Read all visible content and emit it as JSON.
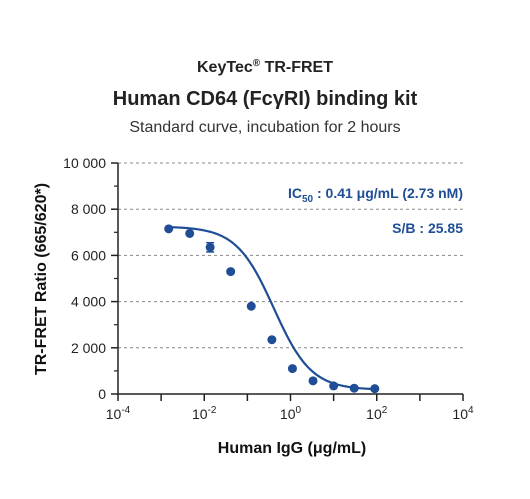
{
  "header": {
    "brand": "KeyTec",
    "brand_mark": "®",
    "brand_suffix": "TR-FRET",
    "title": "Human CD64 (FcγRI) binding kit",
    "subtitle": "Standard curve,  incubation for 2 hours"
  },
  "chart_data": {
    "type": "scatter",
    "title": "Human CD64 (FcγRI) binding kit",
    "subtitle": "Standard curve,  incubation for 2 hours",
    "xlabel": "Human IgG  (μg/mL)",
    "ylabel": "TR-FRET Ratio (665/620*)",
    "x_scale": "log",
    "xlim": [
      0.0001,
      10000
    ],
    "ylim": [
      0,
      10000
    ],
    "x_tick_labels": [
      {
        "base": "10",
        "exp": "-4"
      },
      {
        "base": "10",
        "exp": "-2"
      },
      {
        "base": "10",
        "exp": "0"
      },
      {
        "base": "10",
        "exp": "2"
      },
      {
        "base": "10",
        "exp": "4"
      }
    ],
    "y_tick_labels": [
      "0",
      "2 000",
      "4 000",
      "6 000",
      "8 000",
      "10 000"
    ],
    "grid": "horizontal dashed",
    "series": [
      {
        "color": "#1f4e96",
        "x": [
          0.0015,
          0.0046,
          0.0137,
          0.041,
          0.123,
          0.37,
          1.11,
          3.33,
          10,
          30,
          90
        ],
        "y": [
          7150,
          6950,
          6350,
          5300,
          3800,
          2350,
          1100,
          570,
          350,
          250,
          230
        ],
        "error": [
          0,
          0,
          200,
          0,
          0,
          0,
          0,
          0,
          0,
          0,
          0
        ]
      }
    ],
    "fit": {
      "model": "4PL",
      "top": 7250,
      "bottom": 180,
      "ec50": 0.41,
      "hill": 1.0
    },
    "annotations": {
      "ic50_prefix": "IC",
      "ic50_sub": "50",
      "ic50_value": " : 0.41 μg/mL (2.73 nM)",
      "sb": "S/B : 25.85"
    }
  }
}
